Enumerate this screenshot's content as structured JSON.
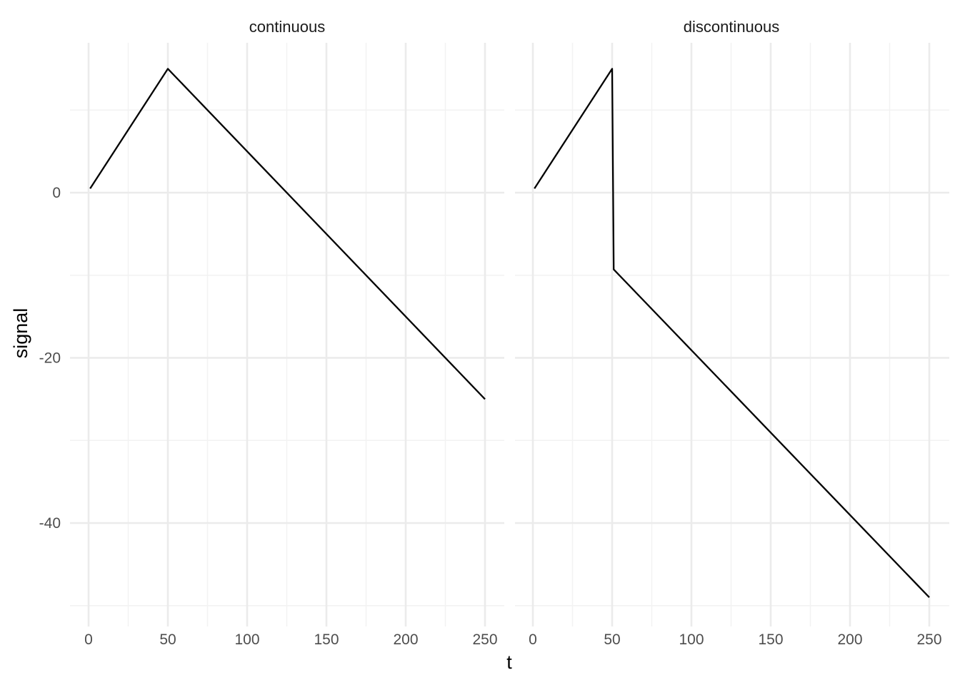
{
  "chart_data": {
    "type": "line",
    "xlabel": "t",
    "ylabel": "signal",
    "grid": true,
    "x_ticks": [
      "0",
      "50",
      "100",
      "150",
      "200",
      "250"
    ],
    "y_ticks": [
      "0",
      "-20",
      "-40"
    ],
    "xlim": [
      -10,
      260
    ],
    "ylim": [
      -50,
      17
    ],
    "colors": {
      "line": "#000000",
      "grid_major": "#ebebeb",
      "grid_minor": "#f2f2f2"
    },
    "panels": [
      {
        "title": "continuous",
        "x": [
          1,
          50,
          250
        ],
        "y": [
          0.5,
          15,
          -25
        ]
      },
      {
        "title": "discontinuous",
        "x": [
          1,
          50,
          51,
          250
        ],
        "y": [
          0.5,
          15,
          -9.3,
          -49
        ]
      }
    ]
  }
}
